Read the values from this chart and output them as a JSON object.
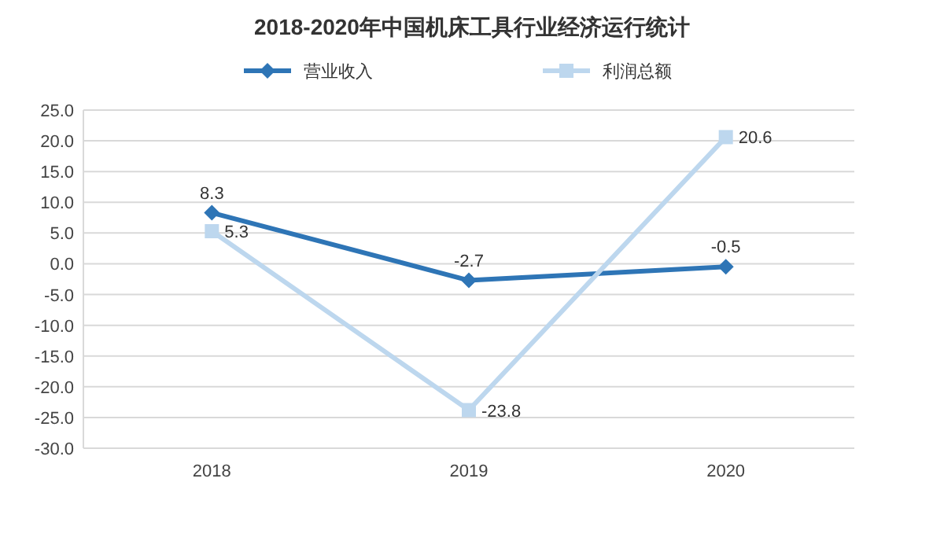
{
  "chart_data": {
    "type": "line",
    "title": "2018-2020年中国机床工具行业经济运行统计",
    "categories": [
      "2018",
      "2019",
      "2020"
    ],
    "series": [
      {
        "name": "营业收入",
        "color": "#2e75b6",
        "marker": "diamond",
        "values": [
          8.3,
          -2.7,
          -0.5
        ]
      },
      {
        "name": "利润总额",
        "color": "#bdd7ee",
        "marker": "square",
        "values": [
          5.3,
          -23.8,
          20.6
        ]
      }
    ],
    "ylim": [
      -30,
      25
    ],
    "yticks": [
      {
        "value": 25,
        "label": "25.0"
      },
      {
        "value": 20,
        "label": "20.0"
      },
      {
        "value": 15,
        "label": "15.0"
      },
      {
        "value": 10,
        "label": "10.0"
      },
      {
        "value": 5,
        "label": "5.0"
      },
      {
        "value": 0,
        "label": "0.0"
      },
      {
        "value": -5,
        "label": "-5.0"
      },
      {
        "value": -10,
        "label": "-10.0"
      },
      {
        "value": -15,
        "label": "-15.0"
      },
      {
        "value": -20,
        "label": "-20.0"
      },
      {
        "value": -25,
        "label": "-25.0"
      },
      {
        "value": -30,
        "label": "-30.0"
      }
    ],
    "grid": "y",
    "legend": "top",
    "data_labels": true,
    "line_style": "solid"
  }
}
